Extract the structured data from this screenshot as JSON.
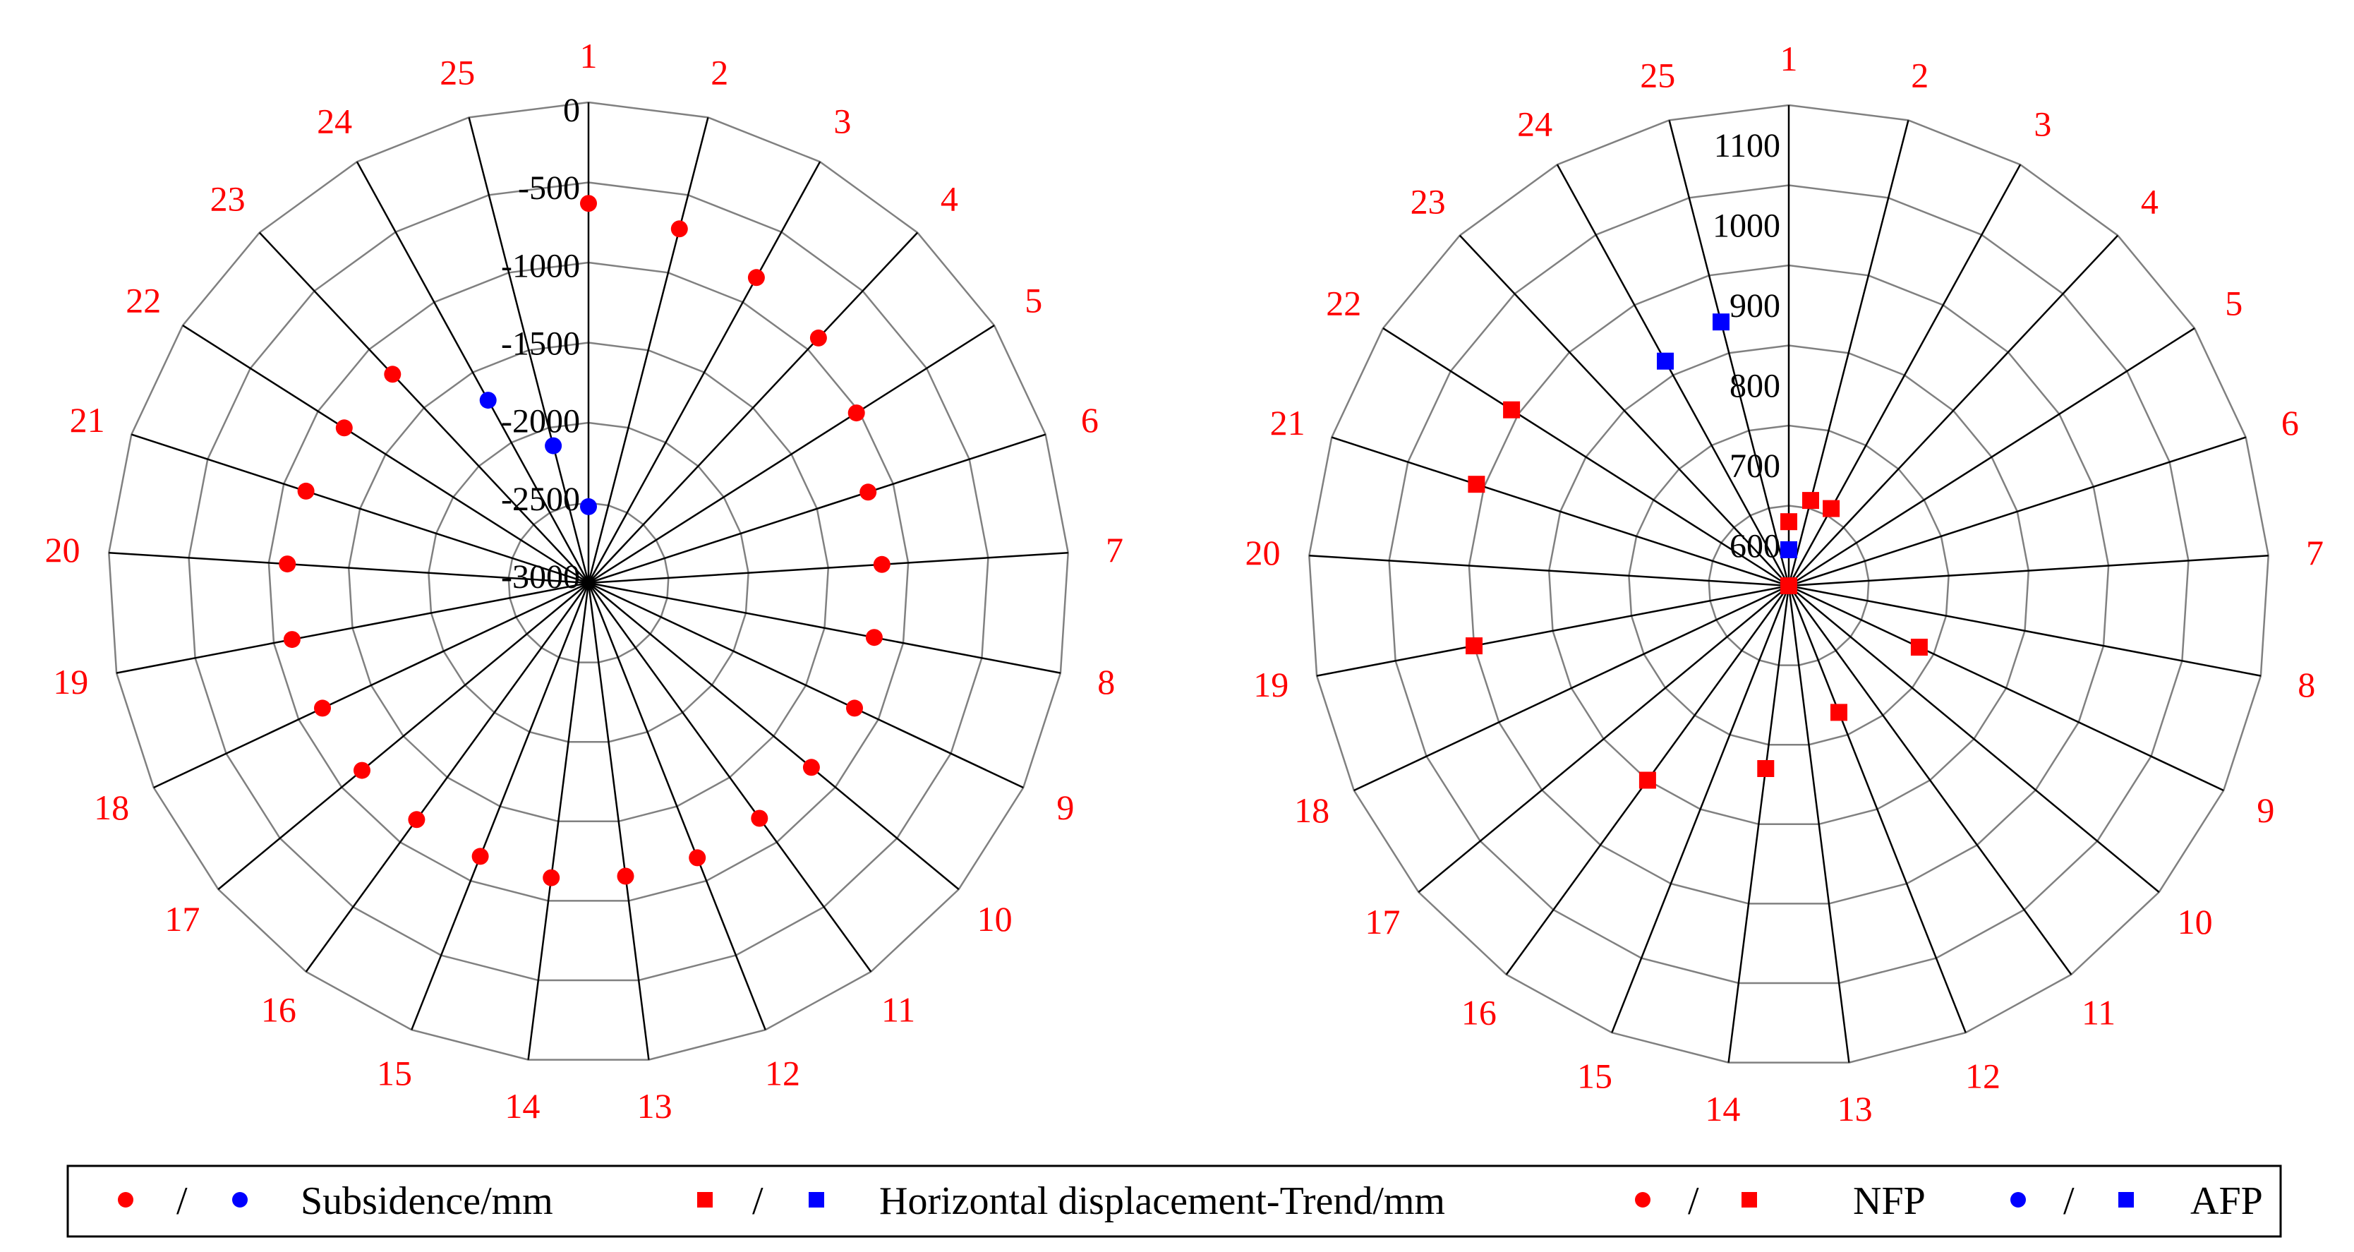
{
  "chart_data": [
    {
      "type": "polar-scatter",
      "categories": [
        "1",
        "2",
        "3",
        "4",
        "5",
        "6",
        "7",
        "8",
        "9",
        "10",
        "11",
        "12",
        "13",
        "14",
        "15",
        "16",
        "17",
        "18",
        "19",
        "20",
        "21",
        "22",
        "23",
        "24",
        "25"
      ],
      "radial_ticks": [
        "0",
        "-500",
        "-1000",
        "-1500",
        "-2000",
        "-2500",
        "-3000"
      ],
      "rlim": [
        -3000,
        0
      ],
      "grid": true,
      "series": [
        {
          "name": "NFP",
          "marker": "circle",
          "color": "#ff0000",
          "points": [
            [
              1,
              -600
            ],
            [
              2,
              -690
            ],
            [
              3,
              -800
            ],
            [
              4,
              -880
            ],
            [
              5,
              -1000
            ],
            [
              6,
              -1150
            ],
            [
              7,
              -1150
            ],
            [
              8,
              -1170
            ],
            [
              9,
              -1150
            ],
            [
              10,
              -1180
            ],
            [
              11,
              -1170
            ],
            [
              12,
              -1140
            ],
            [
              13,
              -1140
            ],
            [
              14,
              -1130
            ],
            [
              15,
              -1150
            ],
            [
              16,
              -1160
            ],
            [
              17,
              -1150
            ],
            [
              18,
              -1150
            ],
            [
              19,
              -1100
            ],
            [
              20,
              -1100
            ],
            [
              21,
              -1130
            ],
            [
              22,
              -1180
            ],
            [
              23,
              -1200
            ]
          ]
        },
        {
          "name": "AFP",
          "marker": "circle",
          "color": "#0000ff",
          "points": [
            [
              1,
              -2550
            ],
            [
              25,
              -2130
            ],
            [
              24,
              -1700
            ]
          ]
        }
      ]
    },
    {
      "type": "polar-scatter",
      "categories": [
        "1",
        "2",
        "3",
        "4",
        "5",
        "6",
        "7",
        "8",
        "9",
        "10",
        "11",
        "12",
        "13",
        "14",
        "15",
        "16",
        "17",
        "18",
        "19",
        "20",
        "21",
        "22",
        "23",
        "24",
        "25"
      ],
      "radial_ticks": [
        "600",
        "700",
        "800",
        "900",
        "1000",
        "1100"
      ],
      "rlim": [
        550,
        1150
      ],
      "grid": true,
      "series": [
        {
          "name": "NFP",
          "marker": "square",
          "color": "#ff0000",
          "points": [
            [
              1,
              630
            ],
            [
              2,
              660
            ],
            [
              3,
              660
            ],
            [
              9,
              730
            ],
            [
              12,
              720
            ],
            [
              14,
              780
            ],
            [
              16,
              850
            ],
            [
              19,
              950
            ],
            [
              21,
              960
            ],
            [
              22,
              960
            ],
            [
              0,
              550
            ]
          ]
        },
        {
          "name": "AFP",
          "marker": "square",
          "color": "#0000ff",
          "points": [
            [
              1,
              595
            ],
            [
              24,
              870
            ],
            [
              25,
              890
            ]
          ]
        }
      ]
    }
  ],
  "legend": {
    "separator": "/",
    "subsidence_label": "Subsidence/mm",
    "horizontal_label": "Horizontal displacement-Trend/mm",
    "nfp_label": "NFP",
    "afp_label": "AFP"
  },
  "colors": {
    "red": "#ff0000",
    "blue": "#0000ff",
    "grid_major": "#000000",
    "grid_minor": "#808080"
  }
}
